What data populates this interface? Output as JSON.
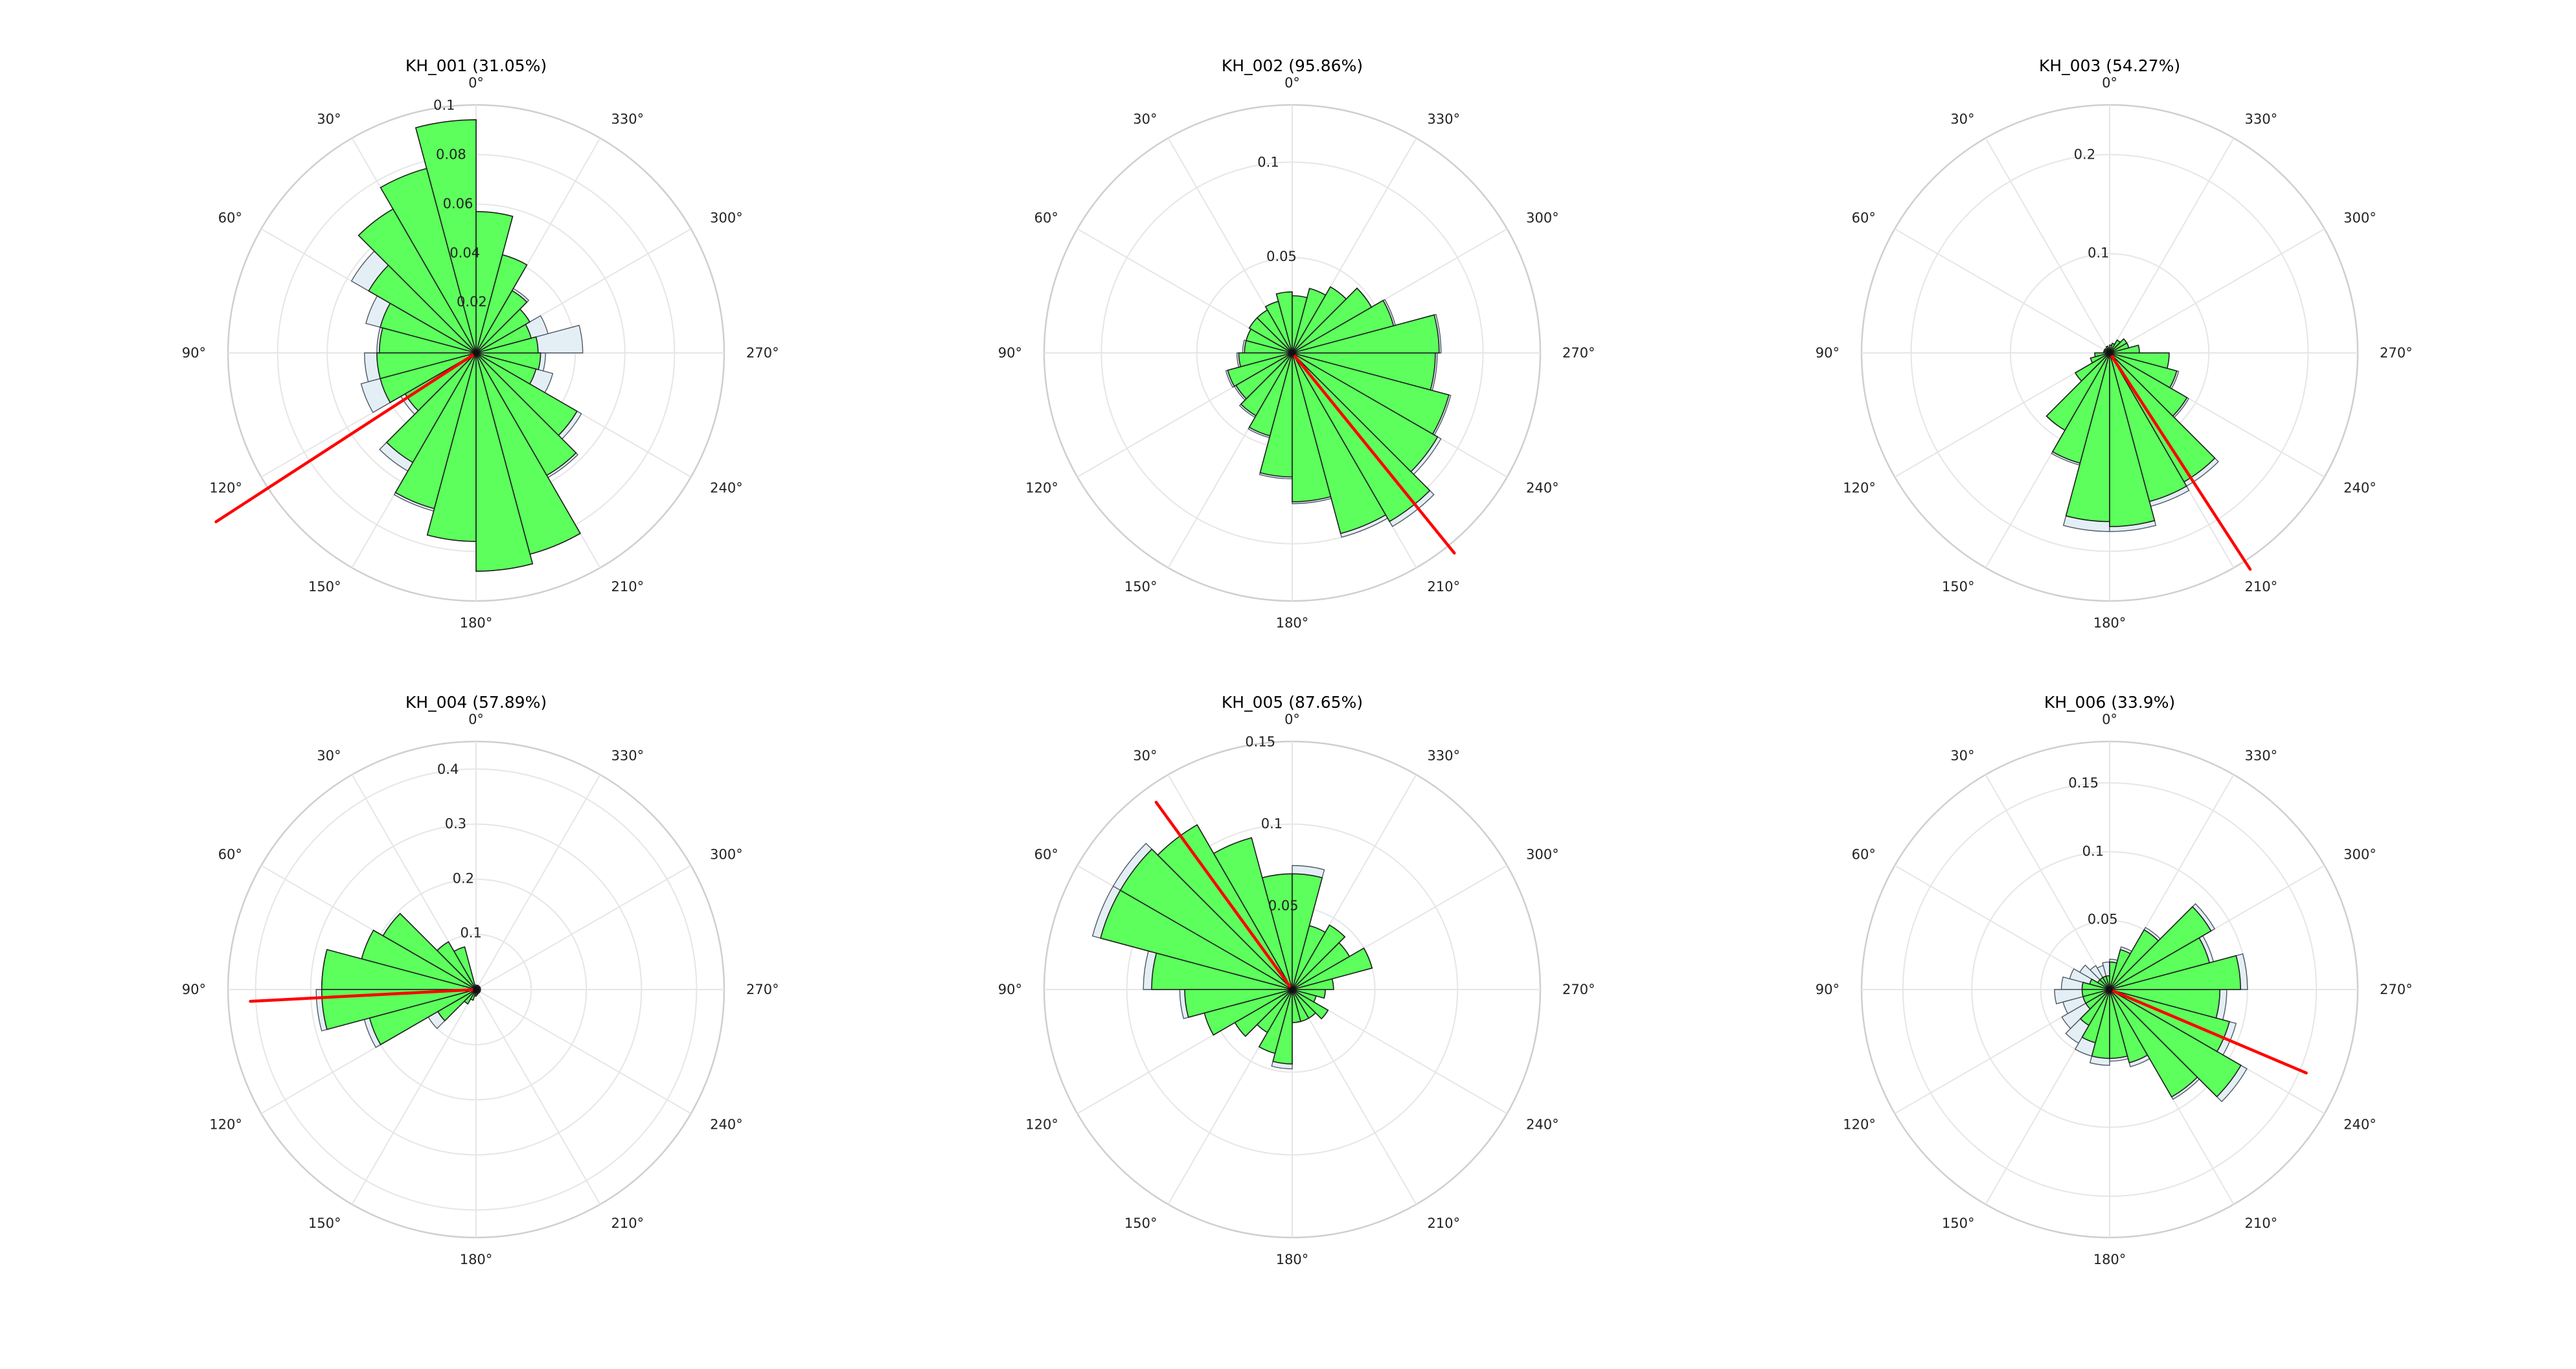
{
  "colors": {
    "bar_fill": "#5cff5c",
    "bar_outline": "#1f1f1f",
    "background_bar_fill": "#e4eef5",
    "mean_direction": "#ff0000",
    "grid": "#e6e6e6"
  },
  "angle_labels": [
    "0°",
    "30°",
    "60°",
    "90°",
    "120°",
    "150°",
    "180°",
    "210°",
    "240°",
    "270°",
    "300°",
    "330°"
  ],
  "chart_data": [
    {
      "type": "bar",
      "projection": "polar",
      "title": "KH_001 (31.05%)",
      "theta_zero": "N",
      "theta_direction": "counterclockwise",
      "bin_width_deg": 15,
      "bin_centers_deg": [
        7.5,
        22.5,
        37.5,
        52.5,
        67.5,
        82.5,
        97.5,
        112.5,
        127.5,
        142.5,
        157.5,
        172.5,
        187.5,
        202.5,
        217.5,
        232.5,
        247.5,
        262.5,
        277.5,
        292.5,
        307.5,
        322.5,
        337.5,
        352.5
      ],
      "rlim": [
        0,
        0.1
      ],
      "rticks": [
        "0.02",
        "0.04",
        "0.06",
        "0.08",
        "0.1"
      ],
      "grid": true,
      "series": [
        {
          "values": [
            0.094,
            0.077,
            0.067,
            0.05,
            0.04,
            0.039,
            0.04,
            0.04,
            0.033,
            0.051,
            0.065,
            0.076,
            0.088,
            0.084,
            0.057,
            0.047,
            0.025,
            0.026,
            0.025,
            0.023,
            0.025,
            0.029,
            0.041,
            0.057
          ]
        },
        {
          "values": [
            0.094,
            0.077,
            0.067,
            0.058,
            0.046,
            0.04,
            0.045,
            0.048,
            0.035,
            0.055,
            0.066,
            0.076,
            0.088,
            0.084,
            0.058,
            0.049,
            0.032,
            0.028,
            0.043,
            0.03,
            0.025,
            0.03,
            0.04,
            0.057
          ]
        }
      ],
      "mean_direction_deg": 123,
      "mean_line_length": 0.125
    },
    {
      "type": "bar",
      "projection": "polar",
      "title": "KH_002 (95.86%)",
      "theta_zero": "N",
      "theta_direction": "counterclockwise",
      "bin_width_deg": 15,
      "bin_centers_deg": [
        7.5,
        22.5,
        37.5,
        52.5,
        67.5,
        82.5,
        97.5,
        112.5,
        127.5,
        142.5,
        157.5,
        172.5,
        187.5,
        202.5,
        217.5,
        232.5,
        247.5,
        262.5,
        277.5,
        292.5,
        307.5,
        322.5,
        337.5,
        352.5
      ],
      "rlim": [
        0,
        0.13
      ],
      "rticks": [
        "0.05",
        "0.1"
      ],
      "grid": true,
      "series": [
        {
          "values": [
            0.032,
            0.028,
            0.026,
            0.026,
            0.025,
            0.025,
            0.028,
            0.035,
            0.034,
            0.038,
            0.045,
            0.065,
            0.078,
            0.098,
            0.102,
            0.088,
            0.085,
            0.075,
            0.077,
            0.055,
            0.048,
            0.04,
            0.035,
            0.03
          ]
        },
        {
          "values": [
            0.032,
            0.028,
            0.026,
            0.026,
            0.025,
            0.026,
            0.029,
            0.036,
            0.035,
            0.039,
            0.046,
            0.066,
            0.079,
            0.1,
            0.105,
            0.09,
            0.086,
            0.076,
            0.078,
            0.056,
            0.048,
            0.04,
            0.035,
            0.03
          ]
        }
      ],
      "mean_direction_deg": 219,
      "mean_line_length": 0.135
    },
    {
      "type": "bar",
      "projection": "polar",
      "title": "KH_003 (54.27%)",
      "theta_zero": "N",
      "theta_direction": "counterclockwise",
      "bin_width_deg": 15,
      "bin_centers_deg": [
        7.5,
        22.5,
        37.5,
        52.5,
        67.5,
        82.5,
        97.5,
        112.5,
        127.5,
        142.5,
        157.5,
        172.5,
        187.5,
        202.5,
        217.5,
        232.5,
        247.5,
        262.5,
        277.5,
        292.5,
        307.5,
        322.5,
        337.5,
        352.5
      ],
      "rlim": [
        0,
        0.25
      ],
      "rticks": [
        "0.1",
        "0.2"
      ],
      "grid": true,
      "series": [
        {
          "values": [
            0.005,
            0.007,
            0.005,
            0.006,
            0.006,
            0.006,
            0.015,
            0.02,
            0.04,
            0.09,
            0.115,
            0.17,
            0.175,
            0.155,
            0.15,
            0.09,
            0.07,
            0.06,
            0.03,
            0.02,
            0.02,
            0.015,
            0.01,
            0.008
          ]
        },
        {
          "values": [
            0.005,
            0.007,
            0.005,
            0.006,
            0.006,
            0.006,
            0.015,
            0.02,
            0.04,
            0.09,
            0.117,
            0.18,
            0.18,
            0.16,
            0.155,
            0.092,
            0.072,
            0.06,
            0.03,
            0.02,
            0.02,
            0.015,
            0.01,
            0.008
          ]
        }
      ],
      "mean_direction_deg": 213,
      "mean_line_length": 0.26
    },
    {
      "type": "bar",
      "projection": "polar",
      "title": "KH_004 (57.89%)",
      "theta_zero": "N",
      "theta_direction": "counterclockwise",
      "bin_width_deg": 15,
      "bin_centers_deg": [
        7.5,
        22.5,
        37.5,
        52.5,
        67.5,
        82.5,
        97.5,
        112.5,
        127.5,
        142.5,
        157.5,
        172.5,
        187.5,
        202.5,
        217.5,
        232.5,
        247.5,
        262.5,
        277.5,
        292.5,
        307.5,
        322.5,
        337.5,
        352.5
      ],
      "rlim": [
        0,
        0.45
      ],
      "rticks": [
        "0.1",
        "0.2",
        "0.3",
        "0.4"
      ],
      "grid": true,
      "series": [
        {
          "values": [
            0.005,
            0.08,
            0.1,
            0.195,
            0.215,
            0.28,
            0.28,
            0.2,
            0.08,
            0.03,
            0.02,
            0.012,
            0.01,
            0.008,
            0.008,
            0.008,
            0.008,
            0.008,
            0.008,
            0.008,
            0.008,
            0.008,
            0.008,
            0.008
          ]
        },
        {
          "values": [
            0.005,
            0.08,
            0.1,
            0.195,
            0.215,
            0.28,
            0.29,
            0.21,
            0.1,
            0.03,
            0.02,
            0.012,
            0.01,
            0.008,
            0.008,
            0.008,
            0.008,
            0.008,
            0.008,
            0.008,
            0.008,
            0.008,
            0.008,
            0.008
          ]
        }
      ],
      "mean_direction_deg": 93,
      "mean_line_length": 0.41
    },
    {
      "type": "bar",
      "projection": "polar",
      "title": "KH_005 (87.65%)",
      "theta_zero": "N",
      "theta_direction": "counterclockwise",
      "bin_width_deg": 15,
      "bin_centers_deg": [
        7.5,
        22.5,
        37.5,
        52.5,
        67.5,
        82.5,
        97.5,
        112.5,
        127.5,
        142.5,
        157.5,
        172.5,
        187.5,
        202.5,
        217.5,
        232.5,
        247.5,
        262.5,
        277.5,
        292.5,
        307.5,
        322.5,
        337.5,
        352.5
      ],
      "rlim": [
        0,
        0.15
      ],
      "rticks": [
        "0.05",
        "0.1",
        "0.15"
      ],
      "grid": true,
      "series": [
        {
          "values": [
            0.07,
            0.095,
            0.115,
            0.12,
            0.12,
            0.085,
            0.065,
            0.055,
            0.04,
            0.03,
            0.04,
            0.045,
            0.02,
            0.02,
            0.02,
            0.025,
            0.015,
            0.02,
            0.025,
            0.05,
            0.04,
            0.045,
            0.04,
            0.07
          ]
        },
        {
          "values": [
            0.07,
            0.095,
            0.115,
            0.125,
            0.125,
            0.09,
            0.068,
            0.055,
            0.04,
            0.03,
            0.04,
            0.048,
            0.02,
            0.02,
            0.02,
            0.025,
            0.015,
            0.02,
            0.025,
            0.05,
            0.04,
            0.045,
            0.04,
            0.075
          ]
        }
      ],
      "mean_direction_deg": 36,
      "mean_line_length": 0.14
    },
    {
      "type": "bar",
      "projection": "polar",
      "title": "KH_006 (33.9%)",
      "theta_zero": "N",
      "theta_direction": "counterclockwise",
      "bin_width_deg": 15,
      "bin_centers_deg": [
        7.5,
        22.5,
        37.5,
        52.5,
        67.5,
        82.5,
        97.5,
        112.5,
        127.5,
        142.5,
        157.5,
        172.5,
        187.5,
        202.5,
        217.5,
        232.5,
        247.5,
        262.5,
        277.5,
        292.5,
        307.5,
        322.5,
        337.5,
        352.5
      ],
      "rlim": [
        0,
        0.18
      ],
      "rticks": [
        "0.05",
        "0.1",
        "0.15"
      ],
      "grid": true,
      "series": [
        {
          "values": [
            0.01,
            0.01,
            0.01,
            0.01,
            0.015,
            0.02,
            0.02,
            0.02,
            0.02,
            0.03,
            0.04,
            0.05,
            0.05,
            0.055,
            0.09,
            0.11,
            0.09,
            0.08,
            0.095,
            0.075,
            0.085,
            0.05,
            0.03,
            0.02
          ]
        },
        {
          "values": [
            0.02,
            0.018,
            0.02,
            0.025,
            0.03,
            0.035,
            0.04,
            0.035,
            0.04,
            0.045,
            0.05,
            0.055,
            0.052,
            0.058,
            0.092,
            0.115,
            0.095,
            0.085,
            0.1,
            0.078,
            0.088,
            0.052,
            0.032,
            0.022
          ]
        }
      ],
      "mean_direction_deg": 247,
      "mean_line_length": 0.155
    }
  ]
}
